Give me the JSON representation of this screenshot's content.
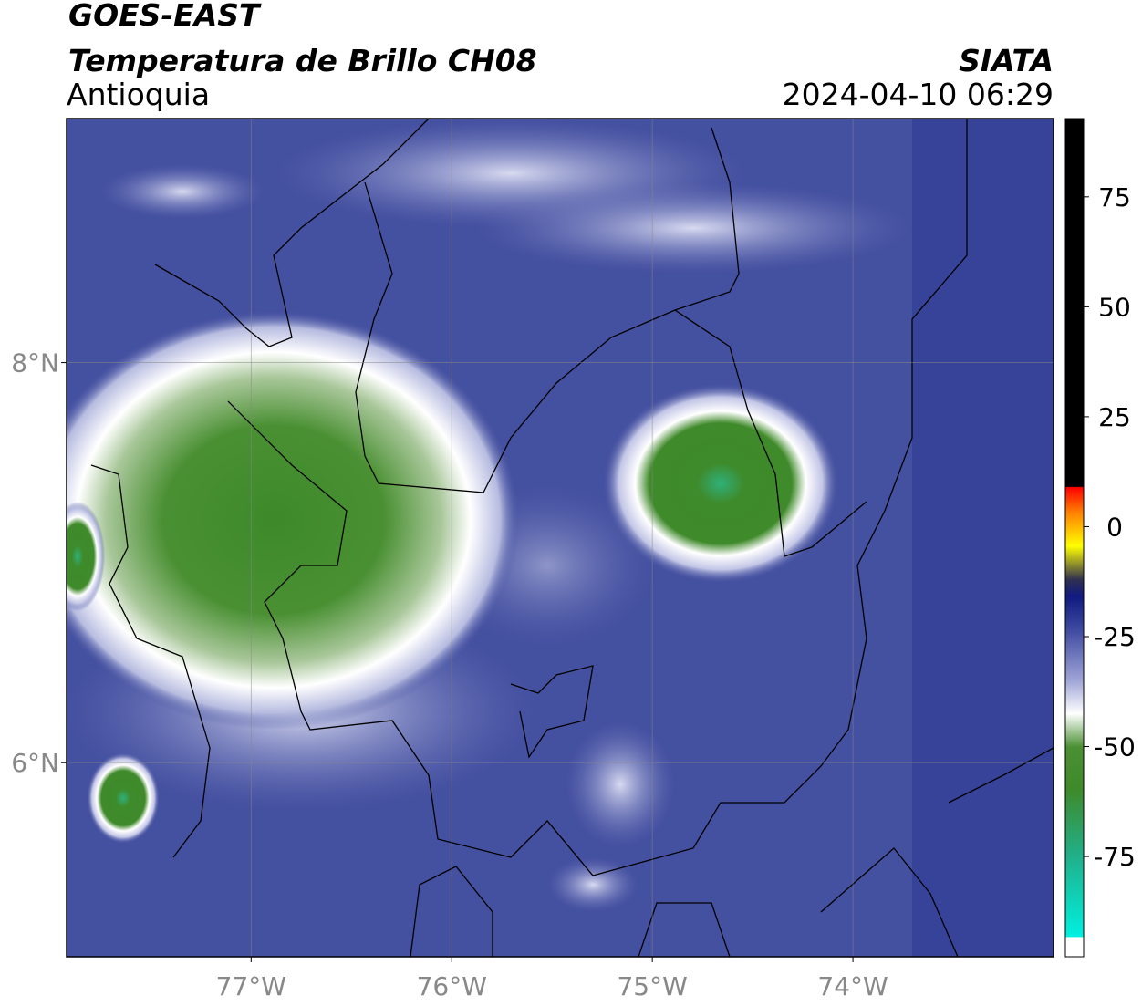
{
  "header": {
    "satellite": "GOES-EAST",
    "product": "Temperatura de Brillo CH08",
    "region": "Antioquia",
    "source": "SIATA",
    "datetime": "2024-04-10 06:29"
  },
  "map": {
    "xlim": [
      -77.92,
      -73.0
    ],
    "ylim": [
      5.03,
      9.22
    ],
    "xticks": [
      {
        "value": -77,
        "label": "77°W"
      },
      {
        "value": -76,
        "label": "76°W"
      },
      {
        "value": -75,
        "label": "75°W"
      },
      {
        "value": -74,
        "label": "74°W"
      }
    ],
    "yticks": [
      {
        "value": 6,
        "label": "6°N"
      },
      {
        "value": 8,
        "label": "8°N"
      }
    ],
    "grid": true
  },
  "colorbar": {
    "lim": [
      -97.8,
      92.8
    ],
    "ticks": [
      75,
      50,
      25,
      0,
      -25,
      -50,
      -75
    ]
  }
}
